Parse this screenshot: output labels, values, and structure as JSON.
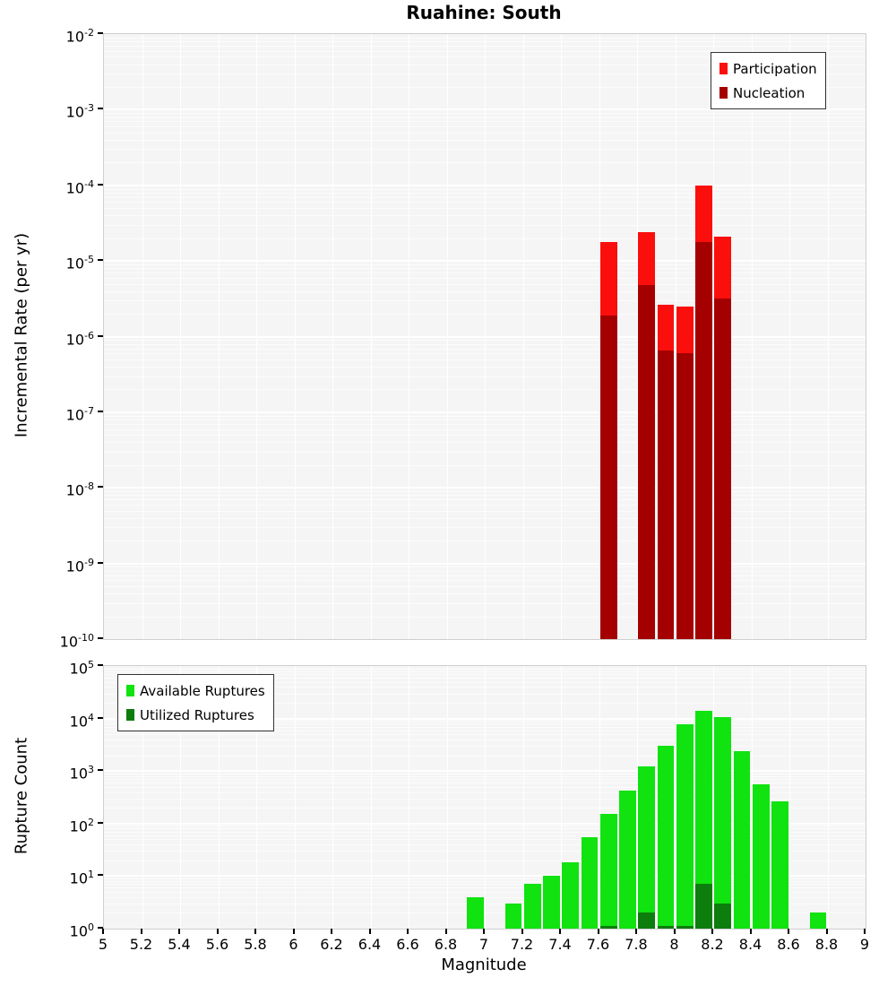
{
  "title": "Ruahine: South",
  "axes": {
    "y_base": "10",
    "x": {
      "label": "Magnitude",
      "labels": [
        "5",
        "5.2",
        "5.4",
        "5.6",
        "5.8",
        "6",
        "6.2",
        "6.4",
        "6.6",
        "6.8",
        "7",
        "7.2",
        "7.4",
        "7.6",
        "7.8",
        "8",
        "8.2",
        "8.4",
        "8.6",
        "8.8",
        "9"
      ],
      "values": [
        5,
        5.2,
        5.4,
        5.6,
        5.8,
        6,
        6.2,
        6.4,
        6.6,
        6.8,
        7,
        7.2,
        7.4,
        7.6,
        7.8,
        8,
        8.2,
        8.4,
        8.6,
        8.8,
        9
      ]
    }
  },
  "chart_data": [
    {
      "type": "bar",
      "title": "Ruahine: South",
      "ylabel": "Incremental Rate (per yr)",
      "xlabel": "",
      "yscale": "log",
      "ylim": [
        1e-10,
        0.01
      ],
      "xlim": [
        5,
        9
      ],
      "bin_width": 0.1,
      "grid": true,
      "legend_position": "upper right",
      "yticks": [
        "-2",
        "-3",
        "-4",
        "-5",
        "-6",
        "-7",
        "-8",
        "-9",
        "-10"
      ],
      "series": [
        {
          "name": "Participation",
          "color": "#fa0f0c",
          "x": [
            7.65,
            7.85,
            7.95,
            8.05,
            8.15,
            8.25
          ],
          "values": [
            1.8e-05,
            2.4e-05,
            2.6e-06,
            2.5e-06,
            0.0001,
            2.1e-05
          ]
        },
        {
          "name": "Nucleation",
          "color": "#a40000",
          "x": [
            7.65,
            7.85,
            7.95,
            8.05,
            8.15,
            8.25
          ],
          "values": [
            1.9e-06,
            4.8e-06,
            6.5e-07,
            6e-07,
            1.8e-05,
            3.2e-06
          ]
        }
      ]
    },
    {
      "type": "bar",
      "title": "",
      "ylabel": "Rupture Count",
      "xlabel": "Magnitude",
      "yscale": "log",
      "ylim": [
        1,
        100000.0
      ],
      "xlim": [
        5,
        9
      ],
      "bin_width": 0.1,
      "grid": true,
      "legend_position": "upper left",
      "yticks": [
        "5",
        "4",
        "3",
        "2",
        "1",
        "0"
      ],
      "series": [
        {
          "name": "Available Ruptures",
          "color": "#10e310",
          "x": [
            6.95,
            7.15,
            7.25,
            7.35,
            7.45,
            7.55,
            7.65,
            7.75,
            7.85,
            7.95,
            8.05,
            8.15,
            8.25,
            8.35,
            8.45,
            8.55,
            8.75
          ],
          "values": [
            4,
            3,
            7,
            10,
            18,
            55,
            150,
            430,
            1250,
            3000,
            7800,
            14000,
            10500,
            2400,
            550,
            270,
            2
          ]
        },
        {
          "name": "Utilized Ruptures",
          "color": "#0d7d0d",
          "x": [
            7.65,
            7.85,
            7.95,
            8.05,
            8.15,
            8.25
          ],
          "values": [
            1,
            2,
            1,
            1,
            7,
            3
          ]
        }
      ]
    }
  ]
}
